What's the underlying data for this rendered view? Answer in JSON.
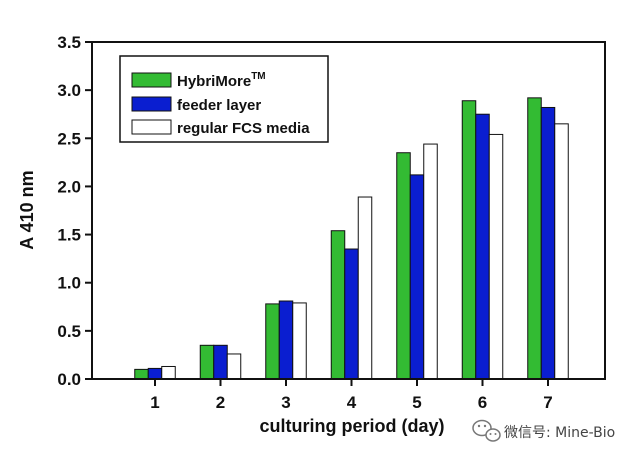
{
  "chart_data": {
    "type": "bar",
    "title": "",
    "xlabel": "culturing period (day)",
    "ylabel": "A 410 nm",
    "categories": [
      "1",
      "2",
      "3",
      "4",
      "5",
      "6",
      "7"
    ],
    "ylim": [
      0,
      3.5
    ],
    "yticks": [
      "0.0",
      "0.5",
      "1.0",
      "1.5",
      "2.0",
      "2.5",
      "3.0",
      "3.5"
    ],
    "grid": false,
    "legend_position": "top-left",
    "series": [
      {
        "name": "HybriMore",
        "name_sup": "TM",
        "color": "#33bb33",
        "values": [
          0.1,
          0.35,
          0.78,
          1.54,
          2.35,
          2.89,
          2.92
        ]
      },
      {
        "name": "feeder layer",
        "color": "#0a1ed0",
        "values": [
          0.11,
          0.35,
          0.81,
          1.35,
          2.12,
          2.75,
          2.82
        ]
      },
      {
        "name": "regular FCS media",
        "color": "#ffffff",
        "values": [
          0.13,
          0.26,
          0.79,
          1.89,
          2.44,
          2.54,
          2.65
        ]
      }
    ]
  },
  "watermark": {
    "icon": "wechat-icon",
    "text": "微信号: Mine-Bio"
  }
}
